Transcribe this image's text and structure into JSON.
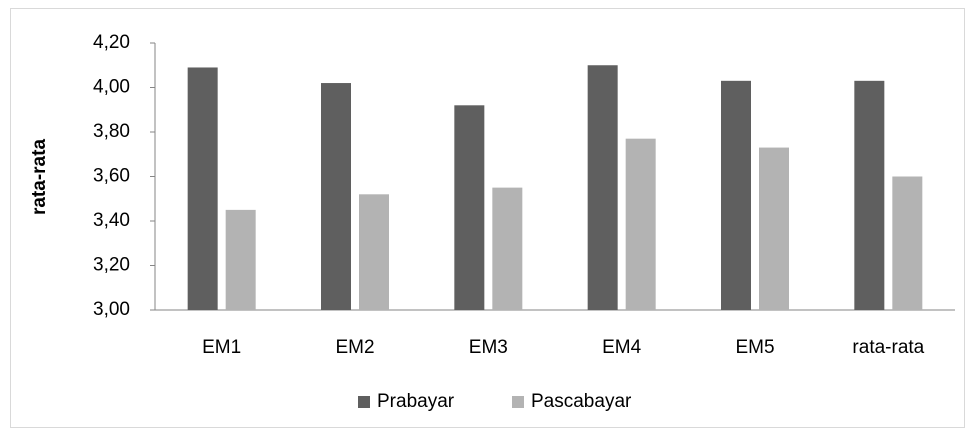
{
  "chart_data": {
    "type": "bar",
    "y_label": "rata-rata",
    "categories": [
      "EM1",
      "EM2",
      "EM3",
      "EM4",
      "EM5",
      "rata-rata"
    ],
    "series": [
      {
        "name": "Prabayar",
        "color": "#5f5f5f",
        "values": [
          4.09,
          4.02,
          3.92,
          4.1,
          4.03,
          4.03
        ]
      },
      {
        "name": "Pascabayar",
        "color": "#b3b3b3",
        "values": [
          3.45,
          3.52,
          3.55,
          3.77,
          3.73,
          3.6
        ]
      }
    ],
    "ylim": [
      3.0,
      4.2
    ],
    "yticks": [
      {
        "value": 3.0,
        "label": "3,00"
      },
      {
        "value": 3.2,
        "label": "3,20"
      },
      {
        "value": 3.4,
        "label": "3,40"
      },
      {
        "value": 3.6,
        "label": "3,60"
      },
      {
        "value": 3.8,
        "label": "3,80"
      },
      {
        "value": 4.0,
        "label": "4,00"
      },
      {
        "value": 4.2,
        "label": "4,20"
      }
    ],
    "grid": false,
    "legend": "bottom"
  }
}
